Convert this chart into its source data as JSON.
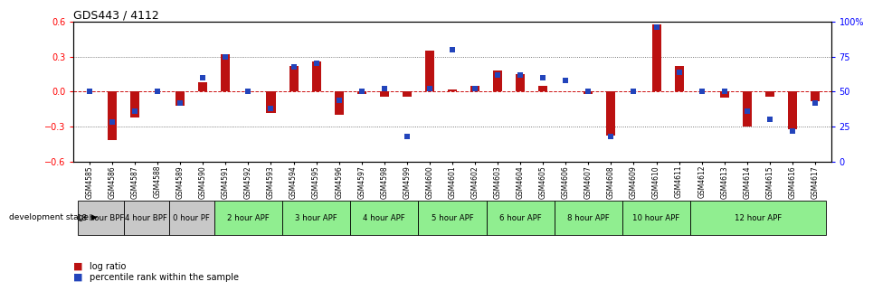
{
  "title": "GDS443 / 4112",
  "samples": [
    "GSM4585",
    "GSM4586",
    "GSM4587",
    "GSM4588",
    "GSM4589",
    "GSM4590",
    "GSM4591",
    "GSM4592",
    "GSM4593",
    "GSM4594",
    "GSM4595",
    "GSM4596",
    "GSM4597",
    "GSM4598",
    "GSM4599",
    "GSM4600",
    "GSM4601",
    "GSM4602",
    "GSM4603",
    "GSM4604",
    "GSM4605",
    "GSM4606",
    "GSM4607",
    "GSM4608",
    "GSM4609",
    "GSM4610",
    "GSM4611",
    "GSM4612",
    "GSM4613",
    "GSM4614",
    "GSM4615",
    "GSM4616",
    "GSM4617"
  ],
  "log_ratio": [
    0.0,
    -0.42,
    -0.22,
    0.0,
    -0.12,
    0.08,
    0.32,
    0.0,
    -0.18,
    0.22,
    0.26,
    -0.2,
    -0.02,
    -0.04,
    -0.04,
    0.35,
    0.02,
    0.05,
    0.18,
    0.15,
    0.05,
    0.0,
    -0.02,
    -0.38,
    0.0,
    0.58,
    0.22,
    0.0,
    -0.05,
    -0.3,
    -0.04,
    -0.32,
    -0.08
  ],
  "percentile": [
    50,
    28,
    36,
    50,
    42,
    60,
    75,
    50,
    38,
    68,
    70,
    44,
    50,
    52,
    18,
    52,
    80,
    52,
    62,
    62,
    60,
    58,
    50,
    18,
    50,
    96,
    64,
    50,
    50,
    36,
    30,
    22,
    42
  ],
  "stage_groups": [
    {
      "label": "18 hour BPF",
      "start": 0,
      "end": 2,
      "color": "#c8c8c8"
    },
    {
      "label": "4 hour BPF",
      "start": 2,
      "end": 4,
      "color": "#c8c8c8"
    },
    {
      "label": "0 hour PF",
      "start": 4,
      "end": 6,
      "color": "#c8c8c8"
    },
    {
      "label": "2 hour APF",
      "start": 6,
      "end": 9,
      "color": "#90ee90"
    },
    {
      "label": "3 hour APF",
      "start": 9,
      "end": 12,
      "color": "#90ee90"
    },
    {
      "label": "4 hour APF",
      "start": 12,
      "end": 15,
      "color": "#90ee90"
    },
    {
      "label": "5 hour APF",
      "start": 15,
      "end": 18,
      "color": "#90ee90"
    },
    {
      "label": "6 hour APF",
      "start": 18,
      "end": 21,
      "color": "#90ee90"
    },
    {
      "label": "8 hour APF",
      "start": 21,
      "end": 24,
      "color": "#90ee90"
    },
    {
      "label": "10 hour APF",
      "start": 24,
      "end": 27,
      "color": "#90ee90"
    },
    {
      "label": "12 hour APF",
      "start": 27,
      "end": 33,
      "color": "#90ee90"
    }
  ],
  "ylim_left": [
    -0.6,
    0.6
  ],
  "ylim_right": [
    0,
    100
  ],
  "yticks_left": [
    -0.6,
    -0.3,
    0.0,
    0.3,
    0.6
  ],
  "yticks_right": [
    0,
    25,
    50,
    75,
    100
  ],
  "bar_color": "#bb1111",
  "dot_color": "#2244bb",
  "hline_color": "#cc1111",
  "dot_hline_color": "#cc1111",
  "grid_line_color": "#555555",
  "background_color": "#ffffff",
  "legend_log_ratio": "log ratio",
  "legend_percentile": "percentile rank within the sample",
  "bar_width": 0.4,
  "dot_size": 18
}
